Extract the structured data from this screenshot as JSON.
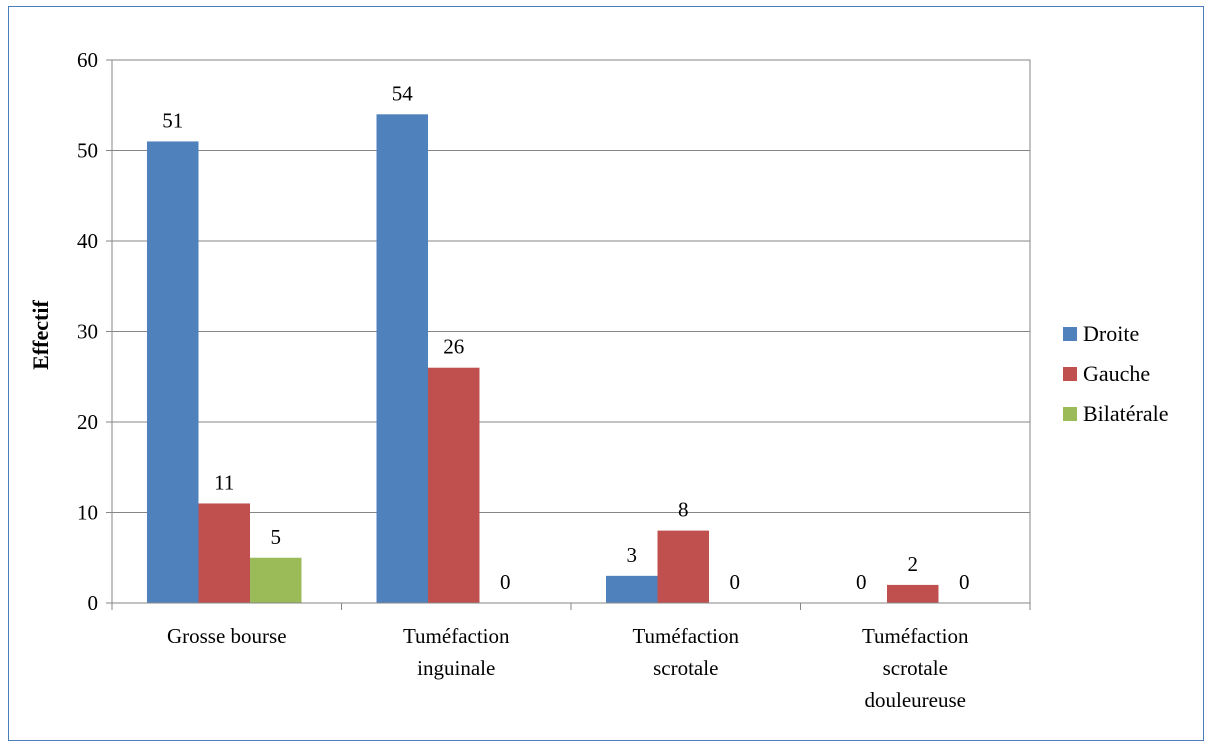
{
  "chart_data": {
    "type": "bar",
    "title": "",
    "xlabel": "",
    "ylabel": "Effectif",
    "ylim": [
      0,
      60
    ],
    "yticks": [
      "0",
      "10",
      "20",
      "30",
      "40",
      "50",
      "60"
    ],
    "categories": [
      [
        "Grosse bourse"
      ],
      [
        "Tuméfaction",
        "inguinale"
      ],
      [
        "Tuméfaction",
        "scrotale"
      ],
      [
        "Tuméfaction",
        "scrotale",
        "douleureuse"
      ]
    ],
    "series": [
      {
        "name": "Droite",
        "color": "#4f81bd",
        "values": [
          51,
          54,
          3,
          0
        ]
      },
      {
        "name": "Gauche",
        "color": "#c0504d",
        "values": [
          11,
          26,
          8,
          2
        ]
      },
      {
        "name": "Bilatérale",
        "color": "#9bbb59",
        "values": [
          5,
          0,
          0,
          0
        ]
      }
    ],
    "grid": true,
    "legend_position": "right"
  }
}
